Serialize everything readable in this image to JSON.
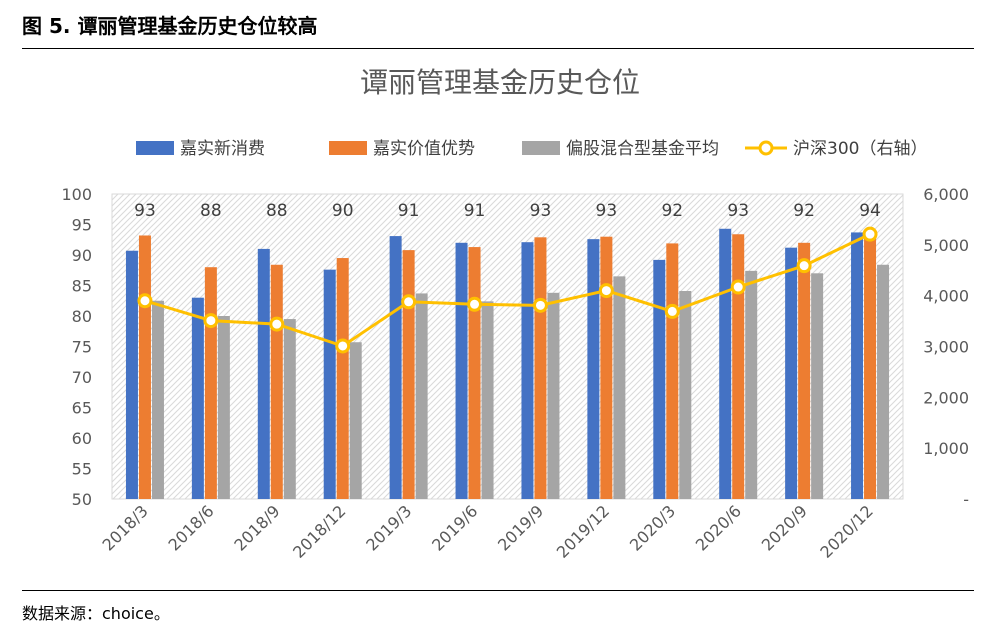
{
  "figure": {
    "title": "图 5. 谭丽管理基金历史仓位较高",
    "source": "数据来源：choice。"
  },
  "chart_data": {
    "type": "bar",
    "title": "谭丽管理基金历史仓位",
    "categories": [
      "2018/3",
      "2018/6",
      "2018/9",
      "2018/12",
      "2019/3",
      "2019/6",
      "2019/9",
      "2019/12",
      "2020/3",
      "2020/6",
      "2020/9",
      "2020/12"
    ],
    "series": [
      {
        "name": "嘉实新消费",
        "type": "bar",
        "axis": "left",
        "color": "#4472C4",
        "values": [
          90.7,
          83.0,
          91.0,
          87.6,
          93.1,
          92.0,
          92.1,
          92.6,
          89.2,
          94.3,
          91.2,
          93.7
        ]
      },
      {
        "name": "嘉实价值优势",
        "type": "bar",
        "axis": "left",
        "color": "#ED7D31",
        "values": [
          93.2,
          88.0,
          88.4,
          89.5,
          90.8,
          91.3,
          92.9,
          93.0,
          91.9,
          93.4,
          92.0,
          94.0
        ]
      },
      {
        "name": "偏股混合型基金平均",
        "type": "bar",
        "axis": "left",
        "color": "#A5A5A5",
        "values": [
          82.5,
          80.0,
          79.5,
          75.7,
          83.7,
          82.4,
          83.8,
          86.5,
          84.1,
          87.4,
          87.0,
          88.4
        ]
      },
      {
        "name": "沪深300（右轴）",
        "type": "line",
        "axis": "right",
        "color": "#FFC000",
        "values": [
          3900,
          3510,
          3440,
          3010,
          3880,
          3830,
          3810,
          4100,
          3690,
          4170,
          4590,
          5210
        ]
      }
    ],
    "data_labels": [
      "93",
      "88",
      "88",
      "90",
      "91",
      "91",
      "93",
      "93",
      "92",
      "93",
      "92",
      "94"
    ],
    "y_left": {
      "ylim": [
        50,
        100
      ],
      "ticks": [
        "50",
        "55",
        "60",
        "65",
        "70",
        "75",
        "80",
        "85",
        "90",
        "95",
        "100"
      ]
    },
    "y_right": {
      "ylim": [
        0,
        6000
      ],
      "ticks": [
        "-",
        "1,000",
        "2,000",
        "3,000",
        "4,000",
        "5,000",
        "6,000"
      ]
    },
    "legend_position": "top",
    "grid": false
  }
}
